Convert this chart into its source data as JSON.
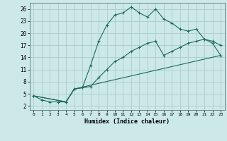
{
  "xlabel": "Humidex (Indice chaleur)",
  "bg_color": "#cce8e8",
  "plot_bg_color": "#cce8e8",
  "grid_color": "#aacccc",
  "line_color": "#1a6b5a",
  "xlim": [
    -0.5,
    23.5
  ],
  "ylim": [
    1,
    27.5
  ],
  "xticks": [
    0,
    1,
    2,
    3,
    4,
    5,
    6,
    7,
    8,
    9,
    10,
    11,
    12,
    13,
    14,
    15,
    16,
    17,
    18,
    19,
    20,
    21,
    22,
    23
  ],
  "yticks": [
    2,
    5,
    8,
    11,
    14,
    17,
    20,
    23,
    26
  ],
  "line1_x": [
    0,
    1,
    2,
    3,
    4,
    5,
    6,
    7,
    8,
    9,
    10,
    11,
    12,
    13,
    14,
    15,
    16,
    17,
    18,
    19,
    20,
    21,
    22,
    23
  ],
  "line1_y": [
    4.5,
    3.5,
    3.0,
    3.0,
    3.0,
    6.2,
    6.5,
    12.0,
    18.0,
    22.0,
    24.5,
    25.0,
    26.5,
    25.0,
    24.0,
    26.0,
    23.5,
    22.5,
    21.0,
    20.5,
    21.0,
    18.5,
    18.0,
    17.0
  ],
  "line2_x": [
    0,
    4,
    5,
    6,
    7,
    8,
    9,
    10,
    11,
    12,
    13,
    14,
    15,
    16,
    17,
    18,
    19,
    20,
    21,
    22,
    23
  ],
  "line2_y": [
    4.5,
    3.0,
    6.2,
    6.5,
    6.8,
    9.0,
    11.0,
    13.0,
    14.0,
    15.5,
    16.5,
    17.5,
    18.0,
    14.5,
    15.5,
    16.5,
    17.5,
    18.0,
    18.5,
    17.5,
    14.5
  ],
  "line3_x": [
    0,
    4,
    5,
    23
  ],
  "line3_y": [
    4.5,
    3.0,
    6.2,
    14.5
  ]
}
